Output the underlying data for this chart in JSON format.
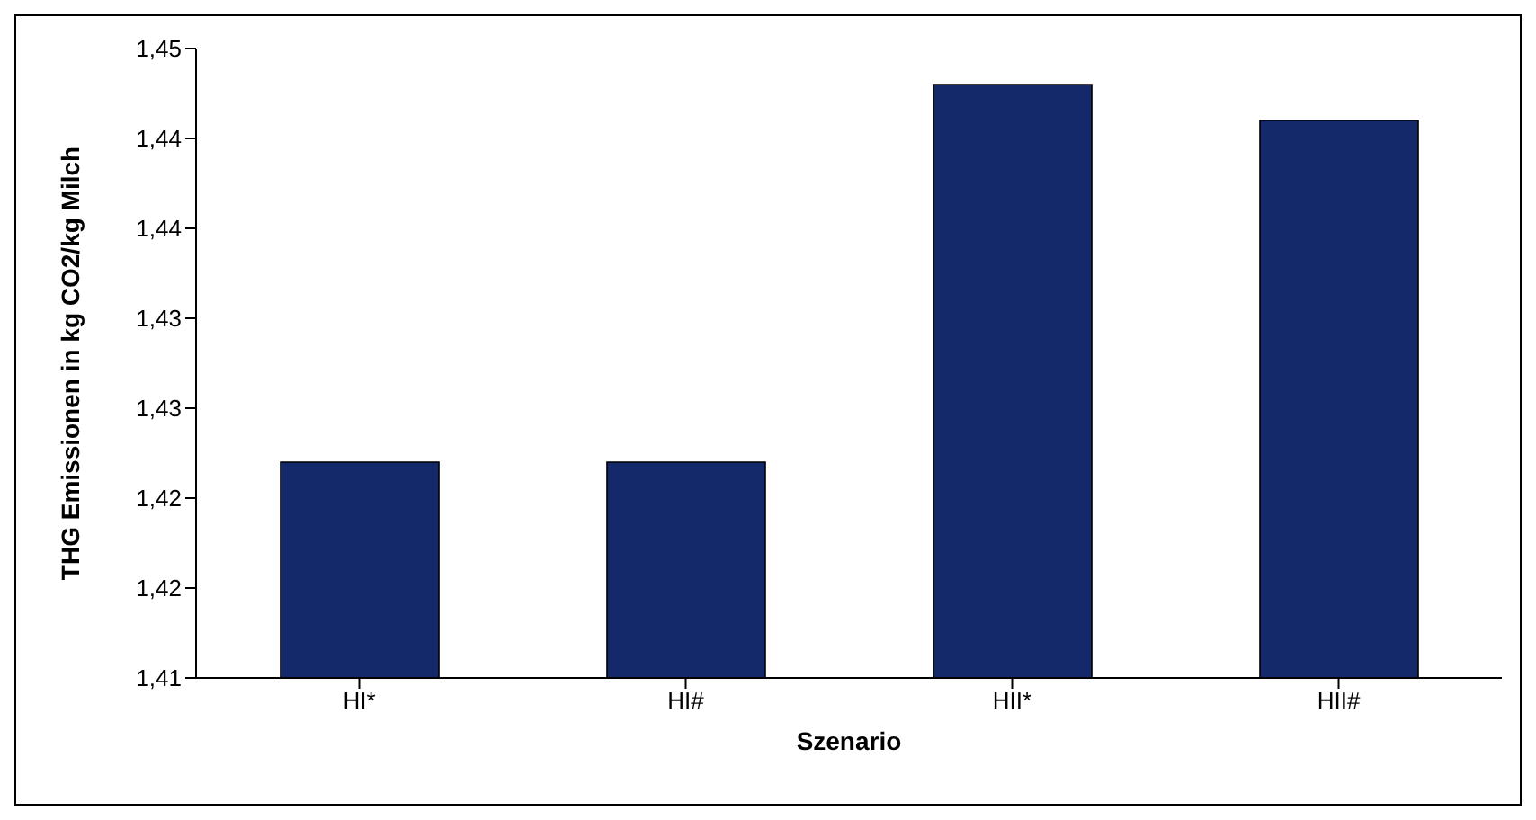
{
  "chart_data": {
    "type": "bar",
    "xlabel": "Szenario",
    "ylabel": "THG Emissionen in kg CO2/kg Milch",
    "categories": [
      "HI*",
      "HI#",
      "HII*",
      "HII#"
    ],
    "values": [
      1.422,
      1.422,
      1.443,
      1.441
    ],
    "color": "#13296a",
    "ylim": [
      1.41,
      1.445
    ],
    "yticks": [
      {
        "value": 1.41,
        "label": "1,41"
      },
      {
        "value": 1.415,
        "label": "1,42"
      },
      {
        "value": 1.42,
        "label": "1,42"
      },
      {
        "value": 1.425,
        "label": "1,43"
      },
      {
        "value": 1.43,
        "label": "1,43"
      },
      {
        "value": 1.435,
        "label": "1,44"
      },
      {
        "value": 1.44,
        "label": "1,44"
      },
      {
        "value": 1.445,
        "label": "1,45"
      }
    ],
    "grid": false,
    "legend": false
  }
}
